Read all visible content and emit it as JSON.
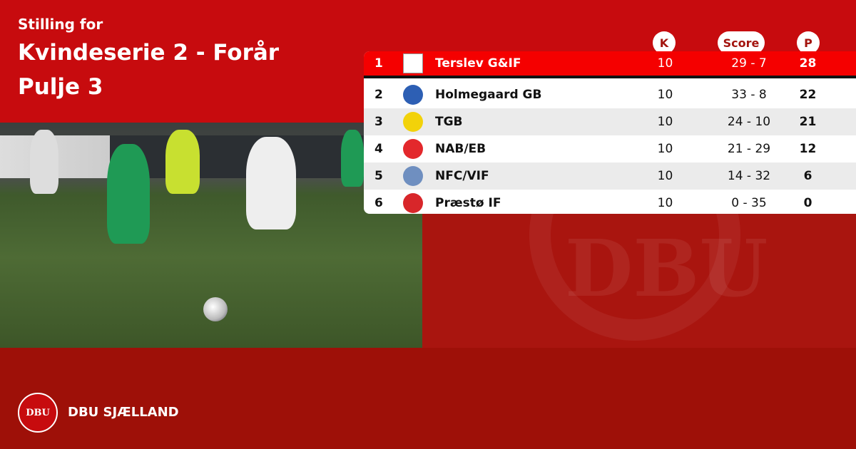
{
  "header": {
    "subtitle": "Stilling for",
    "title": "Kvindeserie 2 - Forår",
    "group": "Pulje 3"
  },
  "columns": {
    "k": "K",
    "score": "Score",
    "p": "P"
  },
  "rows": [
    {
      "pos": "1",
      "team": "Terslev G&IF",
      "k": "10",
      "score": "29 - 7",
      "p": "28",
      "logo_color": "#ffffff"
    },
    {
      "pos": "2",
      "team": "Holmegaard GB",
      "k": "10",
      "score": "33 - 8",
      "p": "22",
      "logo_color": "#2d5fb4"
    },
    {
      "pos": "3",
      "team": "TGB",
      "k": "10",
      "score": "24 - 10",
      "p": "21",
      "logo_color": "#f2d20a"
    },
    {
      "pos": "4",
      "team": "NAB/EB",
      "k": "10",
      "score": "21 - 29",
      "p": "12",
      "logo_color": "#e3282c"
    },
    {
      "pos": "5",
      "team": "NFC/VIF",
      "k": "10",
      "score": "14 - 32",
      "p": "6",
      "logo_color": "#6f8fc0"
    },
    {
      "pos": "6",
      "team": "Præstø IF",
      "k": "10",
      "score": "0 - 35",
      "p": "0",
      "logo_color": "#d8262a"
    }
  ],
  "footer": {
    "brand": "DBU SJÆLLAND",
    "logo_text": "DBU"
  },
  "colors": {
    "top": "#c70b0e",
    "highlight": "#f50000",
    "footer": "#9e1008"
  }
}
